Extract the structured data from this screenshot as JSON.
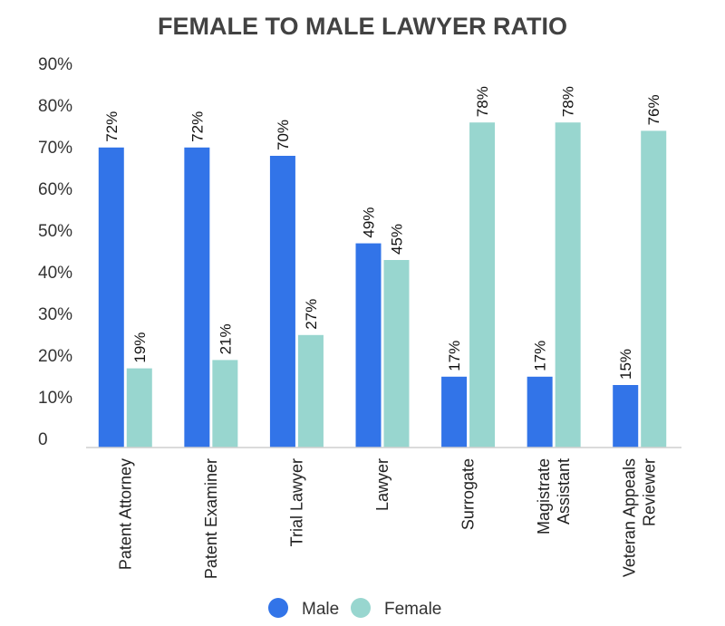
{
  "chart_data": {
    "type": "bar",
    "title": "FEMALE TO MALE LAWYER RATIO",
    "categories": [
      [
        "Patent Attorney"
      ],
      [
        "Patent Examiner"
      ],
      [
        "Trial Lawyer"
      ],
      [
        "Lawyer"
      ],
      [
        "Surrogate"
      ],
      [
        "Magistrate",
        "Assistant"
      ],
      [
        "Veteran Appeals",
        "Reviewer"
      ]
    ],
    "series": [
      {
        "name": "Male",
        "color": "#3274e8",
        "values": [
          72,
          72,
          70,
          49,
          17,
          17,
          15
        ],
        "labels": [
          "72%",
          "72%",
          "70%",
          "49%",
          "17%",
          "17%",
          "15%"
        ]
      },
      {
        "name": "Female",
        "color": "#98d6cf",
        "values": [
          19,
          21,
          27,
          45,
          78,
          78,
          76
        ],
        "labels": [
          "19%",
          "21%",
          "27%",
          "45%",
          "78%",
          "78%",
          "76%"
        ]
      }
    ],
    "yticks": [
      "0",
      "10%",
      "20%",
      "30%",
      "40%",
      "50%",
      "60%",
      "70%",
      "80%",
      "90%"
    ],
    "ylim": [
      0,
      90
    ],
    "xlabel": "",
    "ylabel": "",
    "grid": false,
    "legend_position": "bottom-center"
  }
}
